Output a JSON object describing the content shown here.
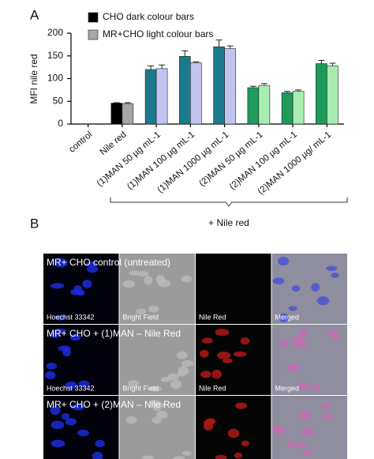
{
  "panels": {
    "a": "A",
    "b": "B"
  },
  "chart_data": {
    "type": "bar",
    "y_label": "MFI nile red",
    "categories": [
      "control",
      "Nile red",
      "(1)MAN 50 µg mL-1",
      "(1)MAN 100 µg mL-1",
      "(1)MAN 1000 µg mL-1",
      "(2)MAN 50 µg mL-1",
      "(2)MAN 100 µg mL-1",
      "(2)MAN 1000 µg/ mL-1"
    ],
    "series": [
      {
        "name": "CHO dark colour bars",
        "color": "#000000",
        "colors": [
          "#000000",
          "#000000",
          "#1b7a8c",
          "#1b7a8c",
          "#1b7a8c",
          "#1e9a5a",
          "#1e9a5a",
          "#1e9a5a"
        ],
        "values": [
          0,
          46,
          120,
          149,
          170,
          80,
          69,
          133
        ],
        "errors": [
          0,
          1,
          8,
          12,
          15,
          3,
          3,
          7
        ]
      },
      {
        "name": "MR+CHO light colour bars",
        "color": "#a6a6a6",
        "colors": [
          "#a6a6a6",
          "#a6a6a6",
          "#c3c3f0",
          "#c3c3f0",
          "#c3c3f0",
          "#a8ecb0",
          "#a8ecb0",
          "#a8ecb0"
        ],
        "values": [
          0,
          45,
          122,
          135,
          166,
          85,
          72,
          128
        ],
        "errors": [
          0,
          2,
          8,
          2,
          6,
          4,
          3,
          6
        ]
      }
    ],
    "ylim": [
      0,
      200
    ],
    "yticks": [
      0,
      50,
      100,
      150,
      200
    ],
    "bracket_label": "+ Nile red"
  },
  "microscopy": {
    "rows": [
      {
        "title": "MR+ CHO control (untreated)",
        "labels": [
          "Hoechst 33342",
          "Bright Field",
          "Nile Red",
          "Merged"
        ]
      },
      {
        "title": "MR+ CHO + (1)MAN – Nile Red",
        "labels": [
          "Hoechst 33342",
          "Bright Field",
          "Nile Red",
          "Merged"
        ]
      },
      {
        "title": "MR+ CHO + (2)MAN – Nile Red",
        "labels": []
      }
    ]
  }
}
